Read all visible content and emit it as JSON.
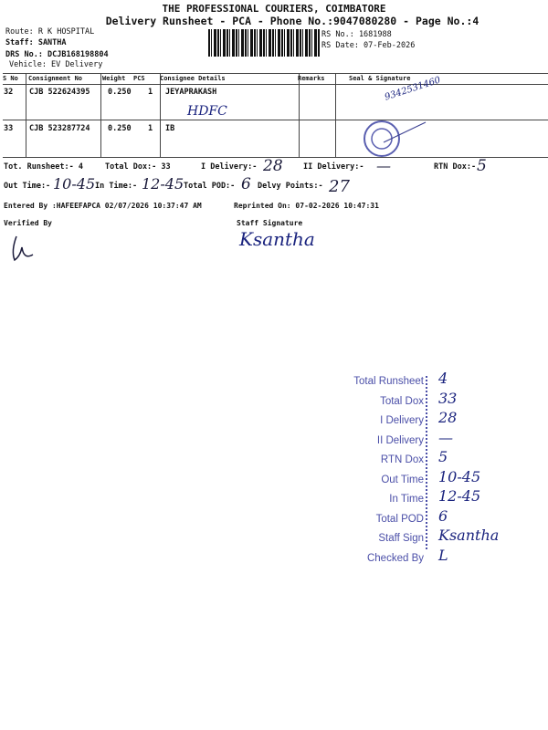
{
  "header": {
    "company": "THE PROFESSIONAL COURIERS, COIMBATORE",
    "subtitle": "Delivery Runsheet - PCA - Phone No.:9047080280 - Page No.:4",
    "route": "Route: R K HOSPITAL",
    "staff": "Staff: SANTHA",
    "drs": "DRS No.: DCJB168198804",
    "vehicle": "Vehicle: EV Delivery",
    "rs_no": "RS No.: 1681988",
    "rs_date": "RS Date: 07-Feb-2026"
  },
  "table": {
    "headers": [
      "S No",
      "Consignment No",
      "Weight",
      "PCS",
      "Consignee Details",
      "Remarks",
      "Seal & Signature"
    ],
    "rows": [
      {
        "sno": "32",
        "consignment": "CJB 522624395",
        "weight": "0.250",
        "pcs": "1",
        "consignee": "JEYAPRAKASH",
        "handwritten": "HDFC",
        "signature": "9342531460"
      },
      {
        "sno": "33",
        "consignment": "CJB 523287724",
        "weight": "0.250",
        "pcs": "1",
        "consignee": "IB"
      }
    ]
  },
  "summary": {
    "tot_runsheet": "Tot. Runsheet:- 4",
    "total_dox": "Total Dox:-   33",
    "i_delivery": "I Delivery:-",
    "i_delivery_val": "28",
    "ii_delivery": "II Delivery:-",
    "ii_delivery_val": "—",
    "rtn_dox": "RTN Dox:-",
    "rtn_dox_val": "5",
    "out_time": "Out Time:-",
    "out_time_val": "10-45",
    "in_time": "In Time:-",
    "in_time_val": "12-45",
    "total_pod": "Total POD:-",
    "total_pod_val": "6",
    "delvy_points": "Delvy Points:-",
    "delvy_points_val": "27",
    "entered_by": "Entered By :HAFEEFAPCA 02/07/2026 10:37:47 AM",
    "reprinted": "Reprinted On: 07-02-2026 10:47:31",
    "verified_by": "Verified By",
    "staff_signature": "Staff Signature",
    "staff_sign_hw": "Ksantha"
  },
  "stamp": {
    "labels": [
      "Total Runsheet",
      "Total Dox",
      "I Delivery",
      "II Delivery",
      "RTN Dox",
      "Out Time",
      "In Time",
      "Total POD",
      "Staff Sign",
      "Checked By"
    ],
    "values": [
      "4",
      "33",
      "28",
      "—",
      "5",
      "10-45",
      "12-45",
      "6",
      "Ksantha",
      "L"
    ]
  },
  "colors": {
    "stamp": "#4b4fa8",
    "ink": "#1a237e"
  }
}
